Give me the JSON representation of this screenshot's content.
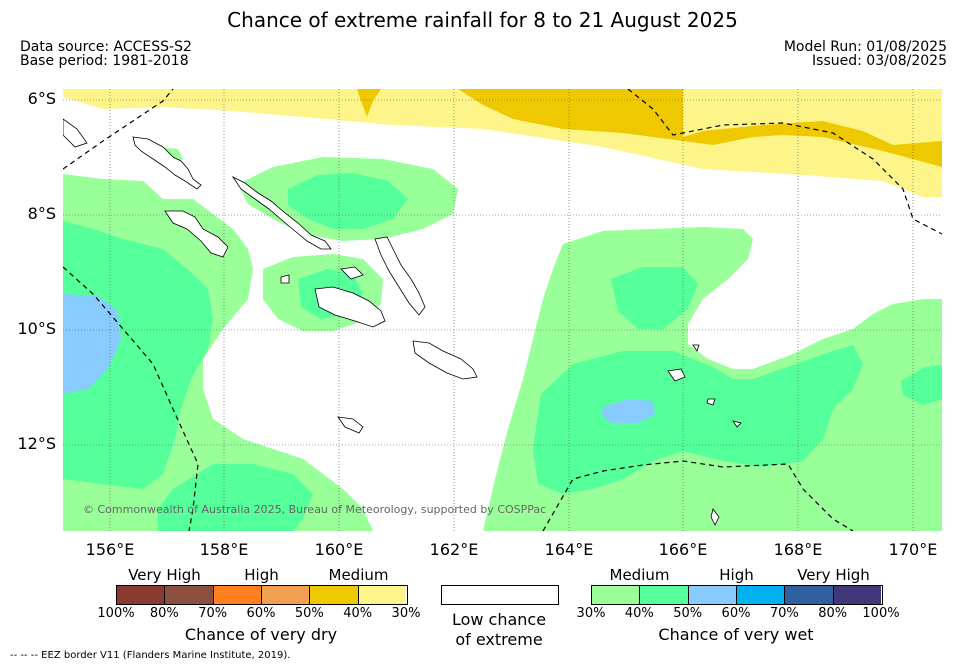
{
  "title": "Chance of extreme rainfall for 8 to 21 August 2025",
  "meta": {
    "data_source": "Data source: ACCESS-S2",
    "base_period": "Base period: 1981-2018",
    "model_run": "Model Run: 01/08/2025",
    "issued": "Issued: 03/08/2025"
  },
  "lat_labels": [
    "6°S",
    "8°S",
    "10°S",
    "12°S"
  ],
  "lon_labels": [
    "156°E",
    "158°E",
    "160°E",
    "162°E",
    "164°E",
    "166°E",
    "168°E",
    "170°E"
  ],
  "copyright": "© Commonwealth of Australia 2025, Bureau of Meteorology, supported by COSPPac",
  "colors": {
    "dry": [
      "#8b3a32",
      "#8b5040",
      "#ff8020",
      "#f0a050",
      "#eec800",
      "#fdf58a"
    ],
    "wet": [
      "#99ff99",
      "#55ff99",
      "#88ccff",
      "#00b0f0",
      "#3060a0",
      "#403878"
    ],
    "low": "#ffffff"
  },
  "legend": {
    "dry": {
      "categories": [
        "Very High",
        "High",
        "Medium"
      ],
      "ticks": [
        "100%",
        "80%",
        "70%",
        "60%",
        "50%",
        "40%",
        "30%"
      ],
      "label": "Chance of very dry"
    },
    "low": {
      "label_line1": "Low chance",
      "label_line2": "of extreme"
    },
    "wet": {
      "categories": [
        "Medium",
        "High",
        "Very High"
      ],
      "ticks": [
        "30%",
        "40%",
        "50%",
        "60%",
        "70%",
        "80%",
        "100%"
      ],
      "label": "Chance of very wet"
    }
  },
  "footnote": "--  --  -- EEZ border V11 (Flanders Marine Institute, 2019)."
}
